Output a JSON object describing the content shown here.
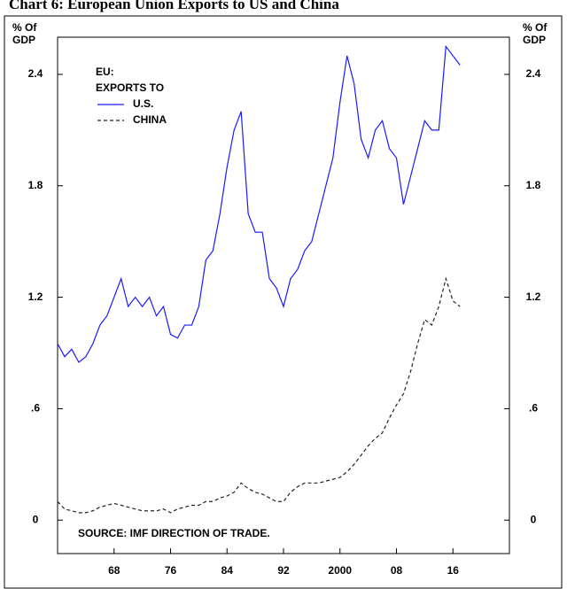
{
  "chart_data": {
    "type": "line",
    "title": "Chart 6: European Union Exports to US and China",
    "y_label": [
      "% Of",
      "GDP"
    ],
    "legend_title": [
      "EU:",
      "EXPORTS TO"
    ],
    "source": "SOURCE: IMF DIRECTION OF TRADE.",
    "x": [
      1960,
      1961,
      1962,
      1963,
      1964,
      1965,
      1966,
      1967,
      1968,
      1969,
      1970,
      1971,
      1972,
      1973,
      1974,
      1975,
      1976,
      1977,
      1978,
      1979,
      1980,
      1981,
      1982,
      1983,
      1984,
      1985,
      1986,
      1987,
      1988,
      1989,
      1990,
      1991,
      1992,
      1993,
      1994,
      1995,
      1996,
      1997,
      1998,
      1999,
      2000,
      2001,
      2002,
      2003,
      2004,
      2005,
      2006,
      2007,
      2008,
      2009,
      2010,
      2011,
      2012,
      2013,
      2014,
      2015,
      2016,
      2017
    ],
    "series": [
      {
        "name": "U.S.",
        "color": "#1a1aff",
        "dash": "solid",
        "values": [
          0.95,
          0.88,
          0.92,
          0.85,
          0.88,
          0.95,
          1.05,
          1.1,
          1.2,
          1.3,
          1.15,
          1.2,
          1.15,
          1.2,
          1.1,
          1.15,
          1.0,
          0.98,
          1.05,
          1.05,
          1.15,
          1.4,
          1.45,
          1.65,
          1.9,
          2.1,
          2.2,
          1.65,
          1.55,
          1.55,
          1.3,
          1.25,
          1.15,
          1.3,
          1.35,
          1.45,
          1.5,
          1.65,
          1.8,
          1.95,
          2.25,
          2.5,
          2.35,
          2.05,
          1.95,
          2.1,
          2.15,
          2.0,
          1.95,
          1.7,
          1.85,
          2.0,
          2.15,
          2.1,
          2.1,
          2.55,
          2.5,
          2.45
        ]
      },
      {
        "name": "CHINA",
        "color": "#222222",
        "dash": "dashed",
        "values": [
          0.1,
          0.06,
          0.05,
          0.04,
          0.04,
          0.05,
          0.07,
          0.08,
          0.09,
          0.08,
          0.07,
          0.06,
          0.05,
          0.05,
          0.05,
          0.06,
          0.04,
          0.06,
          0.07,
          0.08,
          0.08,
          0.1,
          0.1,
          0.12,
          0.13,
          0.15,
          0.2,
          0.17,
          0.15,
          0.14,
          0.12,
          0.1,
          0.1,
          0.15,
          0.18,
          0.2,
          0.2,
          0.2,
          0.21,
          0.22,
          0.23,
          0.26,
          0.3,
          0.35,
          0.4,
          0.44,
          0.47,
          0.55,
          0.62,
          0.68,
          0.8,
          0.95,
          1.08,
          1.05,
          1.15,
          1.3,
          1.18,
          1.15
        ]
      }
    ],
    "xlim": [
      1960,
      2024
    ],
    "xticks": [
      {
        "value": 1968,
        "label": "68"
      },
      {
        "value": 1976,
        "label": "76"
      },
      {
        "value": 1984,
        "label": "84"
      },
      {
        "value": 1992,
        "label": "92"
      },
      {
        "value": 2000,
        "label": "2000"
      },
      {
        "value": 2008,
        "label": "08"
      },
      {
        "value": 2016,
        "label": "16"
      }
    ],
    "ylim": [
      -0.18,
      2.6
    ],
    "yticks": [
      0,
      {
        "value": 0.6,
        "label": ".6"
      },
      {
        "value": 1.2,
        "label": "1.2"
      },
      {
        "value": 1.8,
        "label": "1.8"
      },
      {
        "value": 2.4,
        "label": "2.4"
      }
    ],
    "grid": false
  }
}
